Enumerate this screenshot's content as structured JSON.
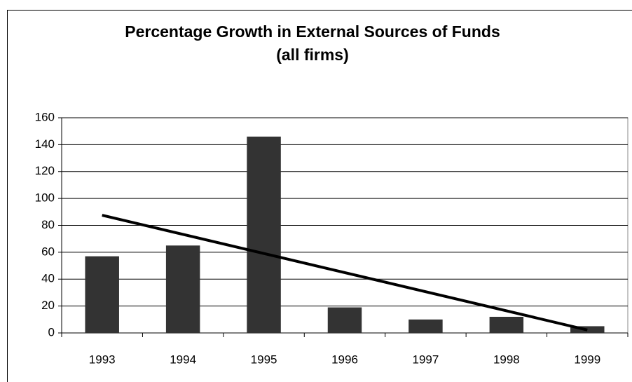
{
  "chart_data": {
    "type": "bar",
    "title": "Percentage Growth in External Sources of Funds",
    "subtitle": "(all firms)",
    "categories": [
      "1993",
      "1994",
      "1995",
      "1996",
      "1997",
      "1998",
      "1999"
    ],
    "values": [
      57,
      65,
      146,
      19,
      10,
      12,
      5
    ],
    "color": "#333333",
    "trendline": {
      "start": 87.5,
      "end": 2.2,
      "color": "#000000"
    },
    "ylim": [
      0,
      160
    ],
    "yticks": [
      0,
      20,
      40,
      60,
      80,
      100,
      120,
      140,
      160
    ],
    "grid": true
  }
}
